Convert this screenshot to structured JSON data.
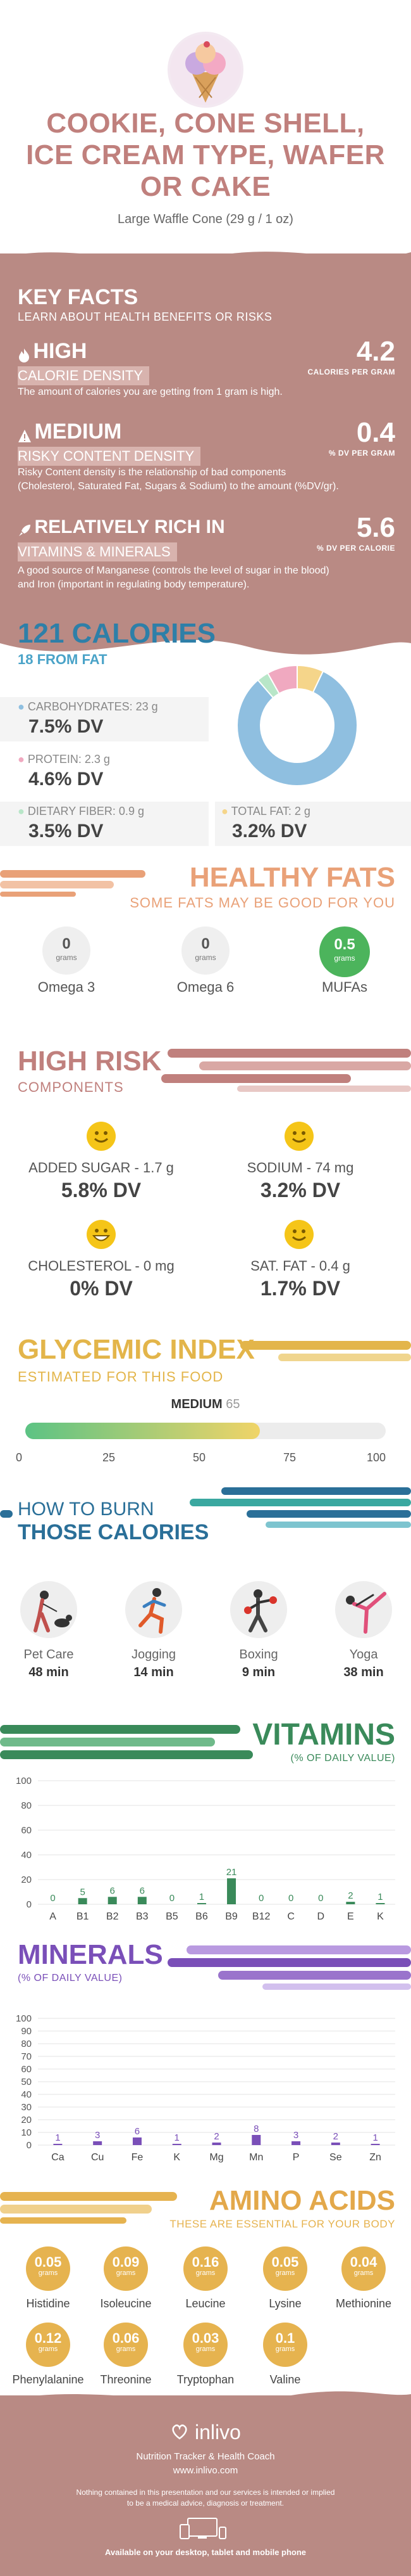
{
  "header": {
    "title_line1": "COOKIE, CONE SHELL,",
    "title_line2": "ICE CREAM TYPE, WAFER",
    "title_line3": "OR CAKE",
    "serving": "Large Waffle Cone (29 g / 1 oz)"
  },
  "key_facts": {
    "title": "KEY FACTS",
    "subtitle": "LEARN ABOUT HEALTH BENEFITS OR RISKS",
    "items": [
      {
        "level": "HIGH",
        "label": "CALORIE DENSITY",
        "value": "4.2",
        "unit": "CALORIES PER GRAM",
        "desc": "The amount of calories you are getting from 1 gram is high."
      },
      {
        "level": "MEDIUM",
        "label": "RISKY CONTENT DENSITY",
        "value": "0.4",
        "unit": "% DV PER GRAM",
        "desc1": "Risky Content density is the relationship of bad components",
        "desc2": "(Cholesterol, Saturated Fat, Sugars & Sodium) to the amount (%DV/gr)."
      },
      {
        "level": "RELATIVELY RICH  IN",
        "label": "VITAMINS & MINERALS",
        "value": "5.6",
        "unit": "% DV PER CALORIE",
        "desc1": "A good source of Manganese (controls the level of sugar in the blood)",
        "desc2": "and Iron (important in regulating body temperature)."
      }
    ]
  },
  "calories": {
    "title": "121 CALORIES",
    "subtitle": "18 FROM FAT",
    "carbs_label": "CARBOHYDRATES: 23 g",
    "carbs_dv": "7.5% DV",
    "protein_label": "PROTEIN: 2.3 g",
    "protein_dv": "4.6% DV",
    "fiber_label": "DIETARY FIBER: 0.9 g",
    "fiber_dv": "3.5% DV",
    "fat_label": "TOTAL FAT: 2 g",
    "fat_dv": "3.2% DV"
  },
  "chart_data": [
    {
      "type": "pie",
      "categories": [
        "Carbohydrates",
        "Protein",
        "Dietary fiber",
        "Total fat"
      ],
      "values": [
        23,
        2.3,
        0.9,
        2
      ],
      "colors": [
        "#8fbfe0",
        "#f0a9c0",
        "#b8e6c8",
        "#f5d58a"
      ]
    },
    {
      "type": "bar",
      "title": "VITAMINS",
      "subtitle": "(% OF DAILY VALUE)",
      "categories": [
        "A",
        "B1",
        "B2",
        "B3",
        "B5",
        "B6",
        "B9",
        "B12",
        "C",
        "D",
        "E",
        "K"
      ],
      "values": [
        0,
        5,
        6,
        6,
        0,
        1,
        21,
        0,
        0,
        0,
        2,
        1
      ],
      "ylim": [
        0,
        100
      ],
      "yticks": [
        0,
        20,
        40,
        60,
        80,
        100
      ]
    },
    {
      "type": "bar",
      "title": "MINERALS",
      "subtitle": "(% OF DAILY VALUE)",
      "categories": [
        "Ca",
        "Cu",
        "Fe",
        "K",
        "Mg",
        "Mn",
        "P",
        "Se",
        "Zn"
      ],
      "values": [
        1,
        3,
        6,
        1,
        2,
        8,
        3,
        2,
        1
      ],
      "ylim": [
        0,
        100
      ],
      "yticks": [
        0,
        10,
        20,
        30,
        40,
        50,
        60,
        70,
        80,
        90,
        100
      ]
    }
  ],
  "healthy_fats": {
    "title": "HEALTHY FATS",
    "subtitle": "SOME FATS MAY BE GOOD FOR YOU",
    "unit": "grams",
    "items": [
      {
        "name": "Omega 3",
        "value": "0"
      },
      {
        "name": "Omega 6",
        "value": "0"
      },
      {
        "name": "MUFAs",
        "value": "0.5"
      }
    ]
  },
  "high_risk": {
    "title": "HIGH RISK",
    "subtitle": "COMPONENTS",
    "items": [
      {
        "label": "ADDED SUGAR - 1.7 g",
        "dv": "5.8% DV"
      },
      {
        "label": "SODIUM - 74 mg",
        "dv": "3.2% DV"
      },
      {
        "label": "CHOLESTEROL - 0 mg",
        "dv": "0% DV"
      },
      {
        "label": "SAT. FAT - 0.4 g",
        "dv": "1.7% DV"
      }
    ]
  },
  "glycemic": {
    "title": "GLYCEMIC INDEX",
    "subtitle": "ESTIMATED FOR THIS FOOD",
    "level": "MEDIUM",
    "value": 65,
    "value_text": "65",
    "ticks": [
      "0",
      "25",
      "50",
      "75",
      "100"
    ]
  },
  "burn": {
    "title1": "HOW TO BURN",
    "title2": "THOSE CALORIES",
    "activities": [
      {
        "name": "Pet Care",
        "minutes": "48 min"
      },
      {
        "name": "Jogging",
        "minutes": "14 min"
      },
      {
        "name": "Boxing",
        "minutes": "9 min"
      },
      {
        "name": "Yoga",
        "minutes": "38 min"
      }
    ]
  },
  "amino": {
    "title": "AMINO ACIDS",
    "subtitle": "THESE ARE ESSENTIAL FOR YOUR BODY",
    "unit": "grams",
    "items": [
      {
        "name": "Histidine",
        "value": "0.05"
      },
      {
        "name": "Isoleucine",
        "value": "0.09"
      },
      {
        "name": "Leucine",
        "value": "0.16"
      },
      {
        "name": "Lysine",
        "value": "0.05"
      },
      {
        "name": "Methionine",
        "value": "0.04"
      },
      {
        "name": "Phenylalanine",
        "value": "0.12"
      },
      {
        "name": "Threonine",
        "value": "0.06"
      },
      {
        "name": "Tryptophan",
        "value": "0.03"
      },
      {
        "name": "Valine",
        "value": "0.1"
      }
    ]
  },
  "footer": {
    "brand": "inlivo",
    "tagline": "Nutrition Tracker & Health Coach",
    "url": "www.inlivo.com",
    "disclaimer1": "Nothing contained in this presentation and our services is intended or implied",
    "disclaimer2": "to be a medical advice, diagnosis or treatment.",
    "available": "Available on your desktop, tablet and mobile phone"
  },
  "colors": {
    "rose": "#c0807d",
    "keyfacts_bg": "#b98a84",
    "calorie_blue": "#2e7fa8",
    "fats_orange": "#e9a178",
    "risk_rose": "#c0807d",
    "glycemic_gold": "#e3b54a",
    "vitamin_green": "#3a8a5a",
    "mineral_purple": "#7a4fb8",
    "amino_gold": "#e6b34f"
  }
}
